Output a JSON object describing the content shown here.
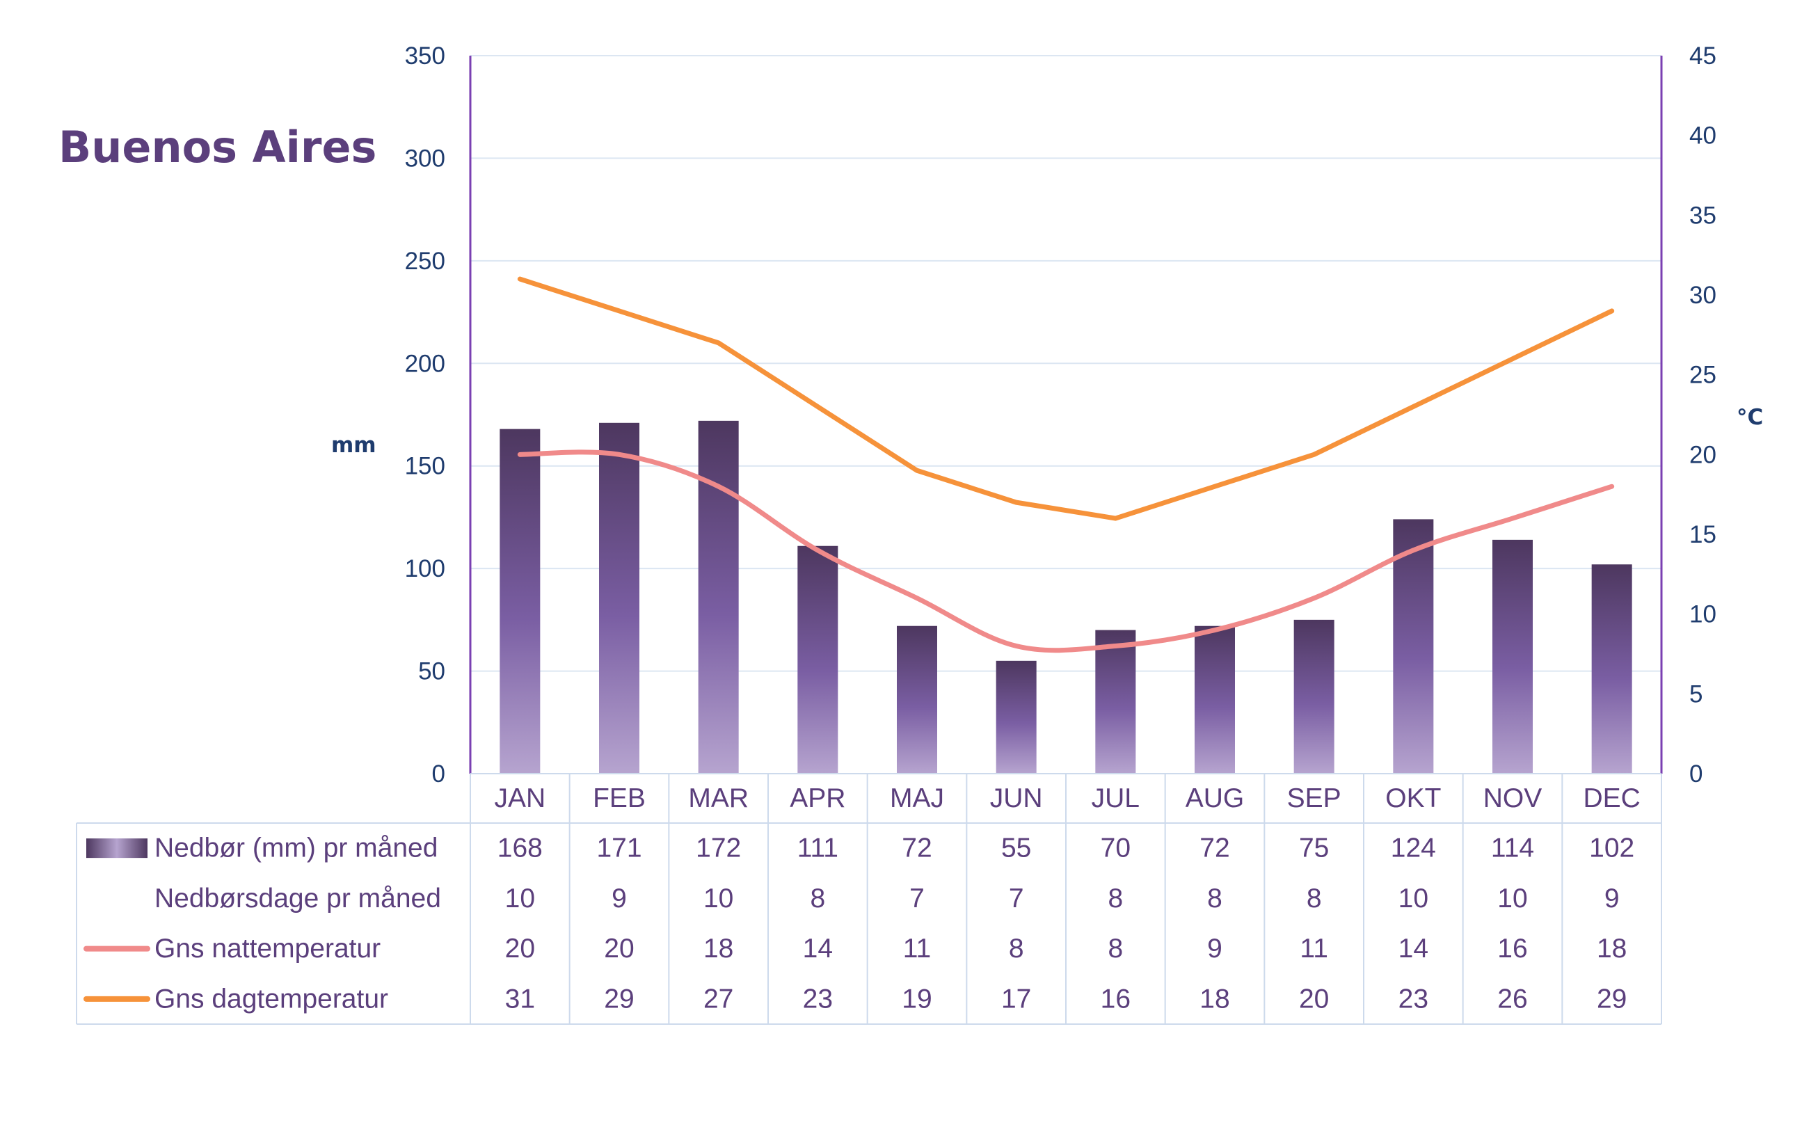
{
  "chart_data": {
    "type": "bar",
    "title": "Buenos Aires",
    "categories": [
      "JAN",
      "FEB",
      "MAR",
      "APR",
      "MAJ",
      "JUN",
      "JUL",
      "AUG",
      "SEP",
      "OKT",
      "NOV",
      "DEC"
    ],
    "left_axis": {
      "label": "mm",
      "ylim": [
        0,
        350
      ],
      "ticks": [
        "0",
        "50",
        "100",
        "150",
        "200",
        "250",
        "300",
        "350"
      ]
    },
    "right_axis": {
      "label": "°C",
      "ylim": [
        0,
        45
      ],
      "ticks": [
        "0",
        "5",
        "10",
        "15",
        "20",
        "25",
        "30",
        "35",
        "40",
        "45"
      ]
    },
    "grid": true,
    "legend_placement": "data table below chart",
    "series": [
      {
        "name": "Nedbør (mm) pr måned",
        "type": "bar",
        "axis": "left",
        "color": "#5b3f7c",
        "values": [
          168,
          171,
          172,
          111,
          72,
          55,
          70,
          72,
          75,
          124,
          114,
          102
        ]
      },
      {
        "name": "Nedbørsdage pr måned",
        "type": "none",
        "values": [
          10,
          9,
          10,
          8,
          7,
          7,
          8,
          8,
          8,
          10,
          10,
          9
        ]
      },
      {
        "name": "Gns nattemperatur",
        "type": "line",
        "axis": "right",
        "color": "#f08a8a",
        "values": [
          20,
          20,
          18,
          14,
          11,
          8,
          8,
          9,
          11,
          14,
          16,
          18
        ]
      },
      {
        "name": "Gns dagtemperatur",
        "type": "line",
        "axis": "right",
        "color": "#f6923a",
        "values": [
          31,
          29,
          27,
          23,
          19,
          17,
          16,
          18,
          20,
          23,
          26,
          29
        ]
      }
    ]
  }
}
